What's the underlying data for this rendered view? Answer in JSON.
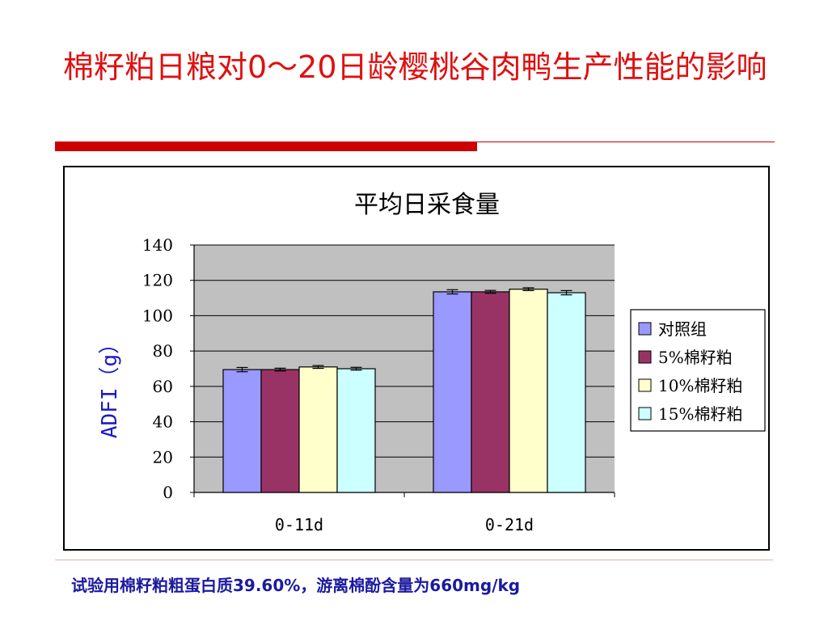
{
  "slide": {
    "title": "棉籽粕日粮对0～20日龄樱桃谷肉鸭生产性能的影响",
    "footnote": "试验用棉籽粕粗蛋白质39.60%，游离棉酚含量为660mg/kg"
  },
  "chart_data": {
    "type": "bar",
    "title": "平均日采食量",
    "ylabel": "ADFI（g）",
    "xlabel": "",
    "ylim": [
      0,
      140
    ],
    "yticks": [
      0,
      20,
      40,
      60,
      80,
      100,
      120,
      140
    ],
    "categories": [
      "0-11d",
      "0-21d"
    ],
    "series": [
      {
        "name": "对照组",
        "color": "#9999ff",
        "values": [
          69.5,
          113.5
        ],
        "errors": [
          1.2,
          1.2
        ]
      },
      {
        "name": "5%棉籽粕",
        "color": "#993366",
        "values": [
          69.5,
          113.5
        ],
        "errors": [
          0.8,
          0.8
        ]
      },
      {
        "name": "10%棉籽粕",
        "color": "#ffffcc",
        "values": [
          71.0,
          115.0
        ],
        "errors": [
          0.8,
          0.8
        ]
      },
      {
        "name": "15%棉籽粕",
        "color": "#ccffff",
        "values": [
          70.0,
          113.0
        ],
        "errors": [
          0.8,
          1.2
        ]
      }
    ],
    "plot_background": "#c0c0c0",
    "grid": true,
    "legend_position": "right"
  }
}
